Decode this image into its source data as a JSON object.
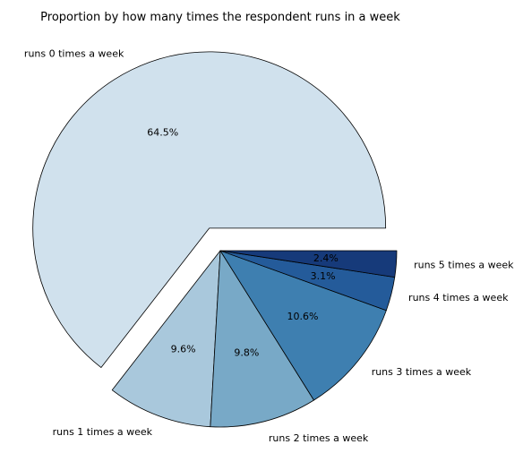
{
  "chart_data": {
    "type": "pie",
    "title": "Proportion by how many times the respondent runs in a week",
    "labels": [
      "runs 0 times a week",
      "runs 1 times a week",
      "runs 2 times a week",
      "runs 3 times a week",
      "runs 4 times a week",
      "runs 5 times a week"
    ],
    "values": [
      64.5,
      9.6,
      9.8,
      10.6,
      3.1,
      2.4
    ],
    "value_labels": [
      "64.5%",
      "9.6%",
      "9.8%",
      "10.6%",
      "3.1%",
      "2.4%"
    ],
    "colors": [
      "#d0e1ed",
      "#a9c8dc",
      "#78a9c7",
      "#3e7fb0",
      "#245b9a",
      "#163a7a"
    ],
    "exploded_slice": "runs 0 times a week",
    "start_angle_deg": 0,
    "direction": "counterclockwise"
  }
}
